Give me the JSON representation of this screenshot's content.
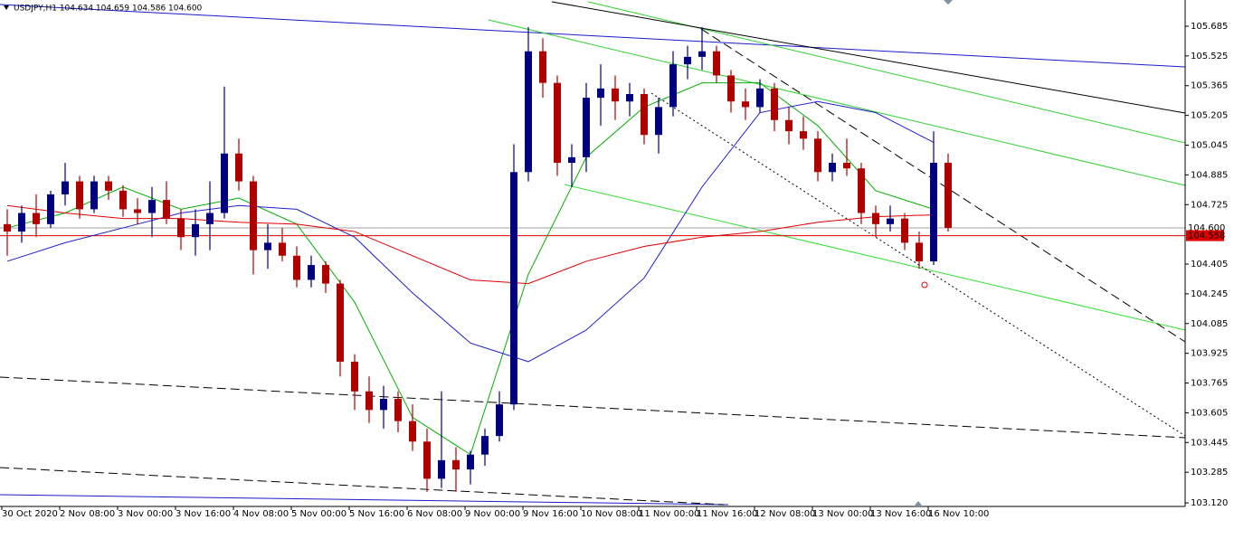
{
  "chart_data": {
    "type": "candlestick",
    "title": "USDJPY,H1  104.634 104.659 104.586 104.600",
    "ylim": [
      103.101,
      105.826
    ],
    "yticks": [
      105.685,
      105.525,
      105.365,
      105.205,
      105.045,
      104.885,
      104.725,
      104.405,
      104.245,
      104.085,
      103.925,
      103.765,
      103.605,
      103.445,
      103.285,
      {
        "value": 103.12,
        "label": "103.120"
      }
    ],
    "xlabels": [
      "30 Oct 2020",
      "2 Nov 08:00",
      "3 Nov 00:00",
      "3 Nov 16:00",
      "4 Nov 08:00",
      "5 Nov 00:00",
      "5 Nov 16:00",
      "6 Nov 08:00",
      "9 Nov 00:00",
      "9 Nov 16:00",
      "10 Nov 08:00",
      "11 Nov 00:00",
      "11 Nov 16:00",
      "12 Nov 08:00",
      "13 Nov 00:00",
      "13 Nov 16:00",
      "16 Nov 10:00"
    ],
    "up_color": "#000080",
    "down_color": "#b00000",
    "open": [
      104.62,
      104.58,
      104.68,
      104.62,
      104.78,
      104.85,
      104.7,
      104.85,
      104.8,
      104.7,
      104.68,
      104.75,
      104.65,
      104.55,
      104.62,
      104.68,
      105.0,
      104.85,
      104.48,
      104.52,
      104.45,
      104.32,
      104.4,
      104.3,
      103.88,
      103.72,
      103.62,
      103.68,
      103.56,
      103.45,
      103.25,
      103.35,
      103.3,
      103.38,
      103.48,
      103.65,
      104.9,
      105.55,
      105.38,
      104.95,
      104.98,
      105.3,
      105.35,
      105.28,
      105.32,
      105.1,
      105.25,
      105.48,
      105.52,
      105.55,
      105.42,
      105.28,
      105.25,
      105.35,
      105.18,
      105.12,
      105.08,
      104.9,
      104.95,
      104.92,
      104.68,
      104.62,
      104.65,
      104.52,
      104.42,
      104.95
    ],
    "high": [
      104.7,
      104.72,
      104.78,
      104.8,
      104.95,
      104.88,
      104.88,
      104.88,
      104.83,
      104.76,
      104.82,
      104.85,
      104.7,
      104.7,
      104.85,
      105.36,
      105.08,
      104.88,
      104.62,
      104.6,
      104.5,
      104.45,
      104.42,
      104.32,
      103.92,
      103.8,
      103.75,
      103.72,
      103.65,
      103.52,
      103.72,
      103.42,
      103.4,
      103.52,
      103.72,
      105.05,
      105.68,
      105.62,
      105.42,
      105.05,
      105.38,
      105.48,
      105.42,
      105.38,
      105.35,
      105.3,
      105.55,
      105.58,
      105.68,
      105.58,
      105.45,
      105.35,
      105.4,
      105.38,
      105.25,
      105.2,
      105.12,
      105.0,
      105.08,
      104.95,
      104.72,
      104.72,
      104.68,
      104.58,
      105.12,
      105.0
    ],
    "low": [
      104.45,
      104.52,
      104.55,
      104.6,
      104.72,
      104.65,
      104.68,
      104.75,
      104.66,
      104.62,
      104.55,
      104.62,
      104.48,
      104.45,
      104.48,
      104.65,
      104.8,
      104.35,
      104.38,
      104.42,
      104.28,
      104.28,
      104.25,
      103.8,
      103.62,
      103.55,
      103.52,
      103.5,
      103.4,
      103.18,
      103.2,
      103.18,
      103.22,
      103.32,
      103.45,
      103.62,
      104.85,
      105.3,
      104.88,
      104.82,
      104.9,
      105.15,
      105.18,
      105.2,
      105.05,
      105.0,
      105.2,
      105.4,
      105.45,
      105.38,
      105.22,
      105.18,
      105.22,
      105.12,
      105.05,
      105.02,
      104.85,
      104.85,
      104.88,
      104.62,
      104.55,
      104.58,
      104.48,
      104.38,
      104.4,
      104.58
    ],
    "close": [
      104.58,
      104.68,
      104.62,
      104.78,
      104.85,
      104.7,
      104.85,
      104.8,
      104.7,
      104.68,
      104.75,
      104.65,
      104.55,
      104.62,
      104.68,
      105.0,
      104.85,
      104.48,
      104.52,
      104.45,
      104.32,
      104.4,
      104.3,
      103.88,
      103.72,
      103.62,
      103.68,
      103.56,
      103.45,
      103.25,
      103.35,
      103.3,
      103.38,
      103.48,
      103.65,
      104.9,
      105.55,
      105.38,
      104.95,
      104.98,
      105.3,
      105.35,
      105.28,
      105.32,
      105.1,
      105.25,
      105.48,
      105.52,
      105.55,
      105.42,
      105.28,
      105.25,
      105.35,
      105.18,
      105.12,
      105.08,
      104.9,
      104.95,
      104.92,
      104.68,
      104.62,
      104.65,
      104.52,
      104.42,
      104.95,
      104.6
    ],
    "series": [
      {
        "color": "#00b000",
        "x": [
          0,
          4,
          8,
          12,
          16,
          20,
          24,
          28,
          32,
          36,
          40,
          44,
          48,
          52,
          56,
          60,
          64
        ],
        "values": [
          104.6,
          104.68,
          104.82,
          104.7,
          104.76,
          104.62,
          104.2,
          103.58,
          103.38,
          104.35,
          104.98,
          105.25,
          105.38,
          105.38,
          105.15,
          104.8,
          104.7
        ]
      },
      {
        "color": "#2020d0",
        "x": [
          0,
          4,
          8,
          12,
          16,
          20,
          24,
          28,
          32,
          36,
          40,
          44,
          48,
          52,
          56,
          60,
          64
        ],
        "values": [
          104.42,
          104.52,
          104.6,
          104.68,
          104.72,
          104.7,
          104.55,
          104.25,
          103.98,
          103.88,
          104.05,
          104.33,
          104.82,
          105.22,
          105.28,
          105.22,
          105.06
        ]
      },
      {
        "color": "#e00000",
        "x": [
          0,
          4,
          8,
          12,
          16,
          20,
          24,
          28,
          32,
          36,
          40,
          44,
          48,
          52,
          56,
          60,
          64
        ],
        "values": [
          104.72,
          104.68,
          104.65,
          104.65,
          104.63,
          104.62,
          104.58,
          104.45,
          104.32,
          104.3,
          104.42,
          104.5,
          104.55,
          104.58,
          104.63,
          104.66,
          104.67
        ]
      }
    ],
    "price_lines": [
      {
        "value": 104.6,
        "label": "104.600",
        "color": "#a0a0a0",
        "label_bg": "#ffffff",
        "label_color": "#000000"
      },
      {
        "value": 104.558,
        "label": "104.558",
        "color": "#e00000",
        "label_bg": "#e00000",
        "label_color": "#ffffff"
      }
    ]
  }
}
